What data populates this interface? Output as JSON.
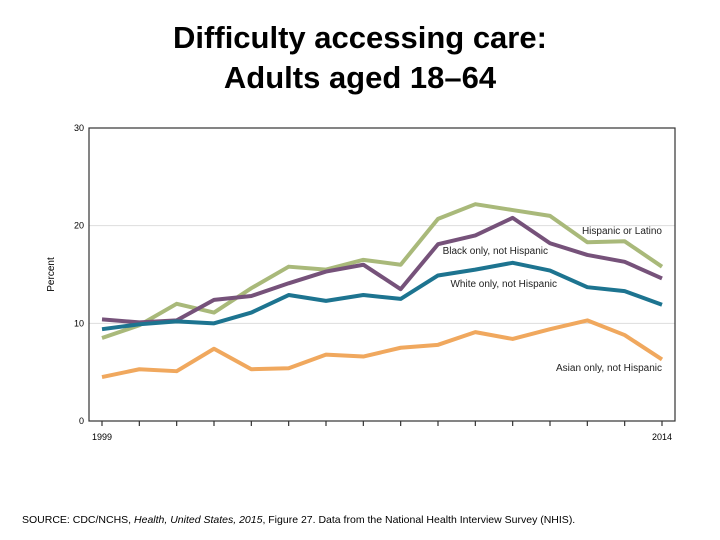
{
  "title_line1": "Difficulty accessing care:",
  "title_line2": "Adults aged 18–64",
  "source": {
    "prefix": "SOURCE: CDC/NCHS, ",
    "italic": "Health, United States, 2015",
    "suffix": ", Figure 27. Data from the National Health Interview Survey (NHIS)."
  },
  "chart_data": {
    "type": "line",
    "title": "",
    "xlabel": "",
    "ylabel": "Percent",
    "x": [
      1999,
      2000,
      2001,
      2002,
      2003,
      2004,
      2005,
      2006,
      2007,
      2008,
      2009,
      2010,
      2011,
      2012,
      2013,
      2014
    ],
    "x_tick_labels": [
      "1999",
      "2014"
    ],
    "ylim": [
      0,
      30
    ],
    "y_ticks": [
      0,
      10,
      20,
      30
    ],
    "grid": true,
    "legend": "inline labels",
    "series": [
      {
        "name": "Hispanic or Latino",
        "color": "#a9b97a",
        "values": [
          8.5,
          9.8,
          12.0,
          11.1,
          13.6,
          15.8,
          15.5,
          16.5,
          16.0,
          20.7,
          22.2,
          21.6,
          21.0,
          18.3,
          18.4,
          15.8
        ]
      },
      {
        "name": "Black only, not Hispanic",
        "color": "#76527a",
        "values": [
          10.4,
          10.1,
          10.3,
          12.4,
          12.8,
          14.1,
          15.3,
          16.0,
          13.5,
          18.1,
          19.0,
          20.8,
          18.2,
          17.0,
          16.3,
          14.6
        ]
      },
      {
        "name": "White only, not Hispanic",
        "color": "#1d7490",
        "values": [
          9.4,
          9.9,
          10.2,
          10.0,
          11.1,
          12.9,
          12.3,
          12.9,
          12.5,
          14.9,
          15.5,
          16.2,
          15.4,
          13.7,
          13.3,
          11.9
        ]
      },
      {
        "name": "Asian only, not Hispanic",
        "color": "#f0a85e",
        "values": [
          4.5,
          5.3,
          5.1,
          7.4,
          5.3,
          5.4,
          6.8,
          6.6,
          7.5,
          7.8,
          9.1,
          8.4,
          9.4,
          10.3,
          8.8,
          6.3
        ]
      }
    ]
  }
}
